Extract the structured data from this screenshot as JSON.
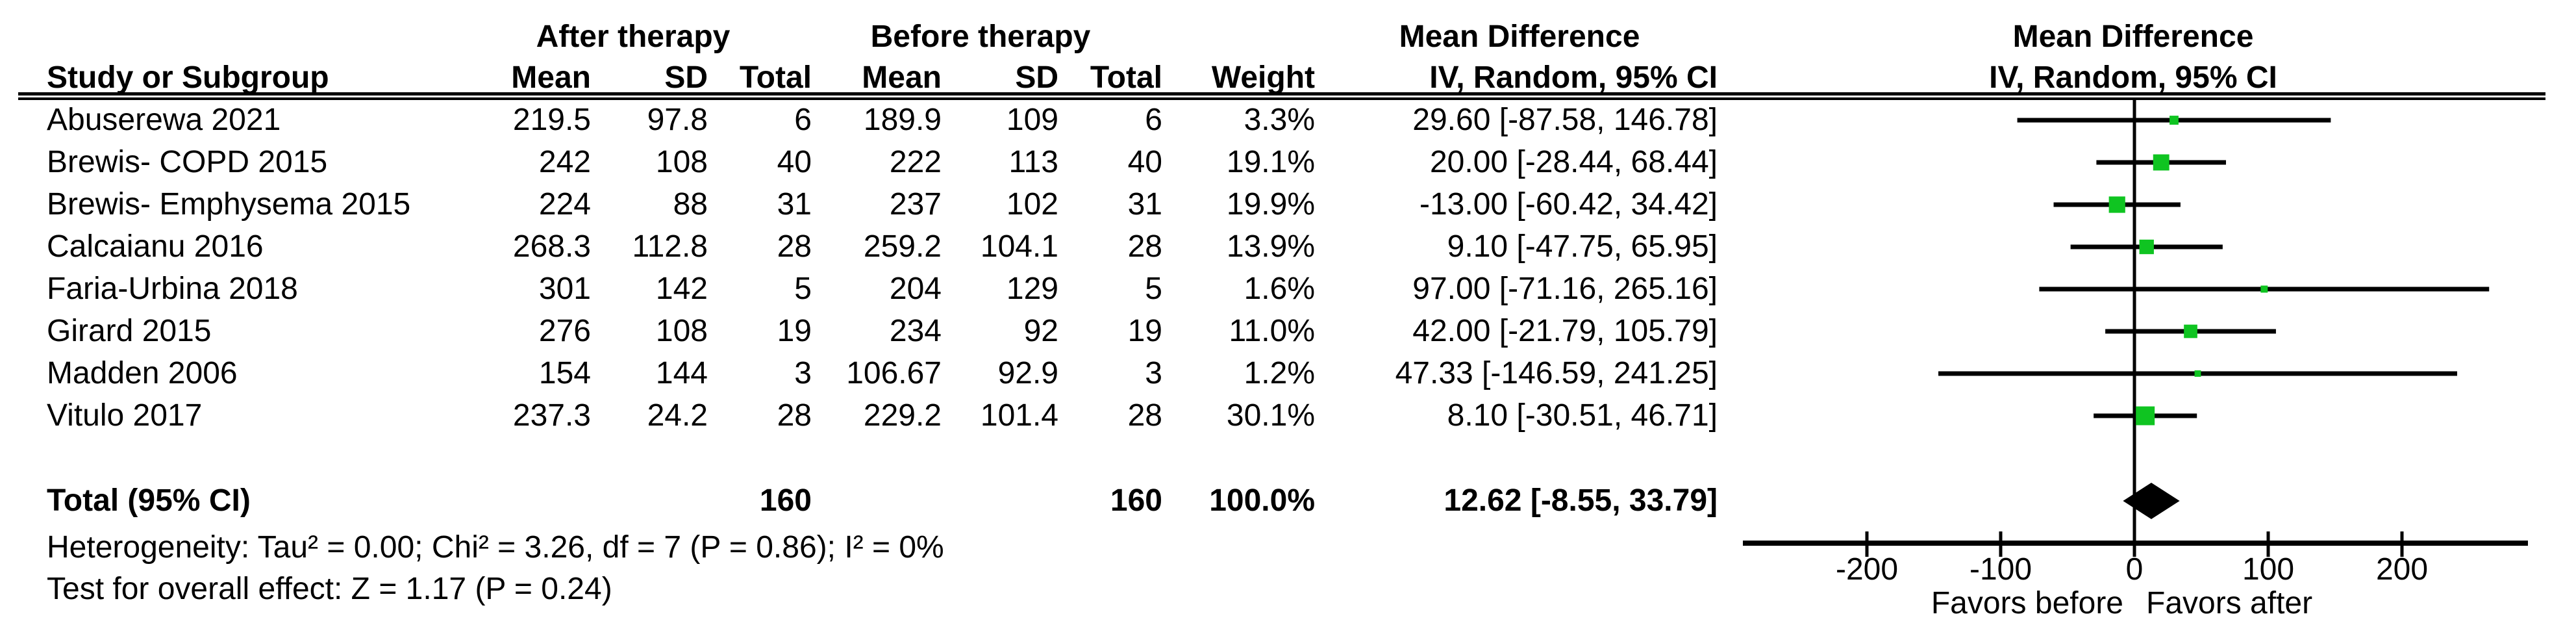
{
  "columns": {
    "study": "Study or Subgroup",
    "group_after": "After therapy",
    "group_before": "Before therapy",
    "mean": "Mean",
    "sd": "SD",
    "total": "Total",
    "weight": "Weight",
    "effect_title": "Mean Difference",
    "effect_method": "IV, Random, 95% CI"
  },
  "plot_header": {
    "title": "Mean Difference",
    "method": "IV, Random, 95% CI"
  },
  "chart_data": {
    "type": "scatter",
    "variant": "forest-plot-mean-difference",
    "title": "Mean Difference IV, Random, 95% CI",
    "x_axis": {
      "ticks": [
        -200,
        -100,
        0,
        100,
        200
      ],
      "tick_labels": [
        "-200",
        "-100",
        "0",
        "100",
        "200"
      ],
      "range": [
        -293,
        294
      ],
      "label_left": "Favors before",
      "label_right": "Favors after"
    },
    "style": {
      "marker_color": "#0fc421",
      "line_color": "#000000"
    },
    "studies": [
      {
        "name": "Abuserewa 2021",
        "after_mean": "219.5",
        "after_sd": "97.8",
        "after_total": "6",
        "before_mean": "189.9",
        "before_sd": "109",
        "before_total": "6",
        "weight": "3.3%",
        "weight_pct": 3.3,
        "md": 29.6,
        "ci_low": -87.58,
        "ci_high": 146.78,
        "ci_text": "29.60 [-87.58, 146.78]"
      },
      {
        "name": "Brewis- COPD 2015",
        "after_mean": "242",
        "after_sd": "108",
        "after_total": "40",
        "before_mean": "222",
        "before_sd": "113",
        "before_total": "40",
        "weight": "19.1%",
        "weight_pct": 19.1,
        "md": 20.0,
        "ci_low": -28.44,
        "ci_high": 68.44,
        "ci_text": "20.00 [-28.44, 68.44]"
      },
      {
        "name": "Brewis- Emphysema 2015",
        "after_mean": "224",
        "after_sd": "88",
        "after_total": "31",
        "before_mean": "237",
        "before_sd": "102",
        "before_total": "31",
        "weight": "19.9%",
        "weight_pct": 19.9,
        "md": -13.0,
        "ci_low": -60.42,
        "ci_high": 34.42,
        "ci_text": "-13.00 [-60.42, 34.42]"
      },
      {
        "name": "Calcaianu 2016",
        "after_mean": "268.3",
        "after_sd": "112.8",
        "after_total": "28",
        "before_mean": "259.2",
        "before_sd": "104.1",
        "before_total": "28",
        "weight": "13.9%",
        "weight_pct": 13.9,
        "md": 9.1,
        "ci_low": -47.75,
        "ci_high": 65.95,
        "ci_text": "9.10 [-47.75, 65.95]"
      },
      {
        "name": "Faria-Urbina 2018",
        "after_mean": "301",
        "after_sd": "142",
        "after_total": "5",
        "before_mean": "204",
        "before_sd": "129",
        "before_total": "5",
        "weight": "1.6%",
        "weight_pct": 1.6,
        "md": 97.0,
        "ci_low": -71.16,
        "ci_high": 265.16,
        "ci_text": "97.00 [-71.16, 265.16]"
      },
      {
        "name": "Girard 2015",
        "after_mean": "276",
        "after_sd": "108",
        "after_total": "19",
        "before_mean": "234",
        "before_sd": "92",
        "before_total": "19",
        "weight": "11.0%",
        "weight_pct": 11.0,
        "md": 42.0,
        "ci_low": -21.79,
        "ci_high": 105.79,
        "ci_text": "42.00 [-21.79, 105.79]"
      },
      {
        "name": "Madden 2006",
        "after_mean": "154",
        "after_sd": "144",
        "after_total": "3",
        "before_mean": "106.67",
        "before_sd": "92.9",
        "before_total": "3",
        "weight": "1.2%",
        "weight_pct": 1.2,
        "md": 47.33,
        "ci_low": -146.59,
        "ci_high": 241.25,
        "ci_text": "47.33 [-146.59, 241.25]"
      },
      {
        "name": "Vitulo 2017",
        "after_mean": "237.3",
        "after_sd": "24.2",
        "after_total": "28",
        "before_mean": "229.2",
        "before_sd": "101.4",
        "before_total": "28",
        "weight": "30.1%",
        "weight_pct": 30.1,
        "md": 8.1,
        "ci_low": -30.51,
        "ci_high": 46.71,
        "ci_text": "8.10 [-30.51, 46.71]"
      }
    ],
    "total": {
      "label": "Total (95% CI)",
      "after_total": "160",
      "before_total": "160",
      "weight": "100.0%",
      "weight_pct": 100.0,
      "md": 12.62,
      "ci_low": -8.55,
      "ci_high": 33.79,
      "ci_text": "12.62 [-8.55, 33.79]"
    },
    "heterogeneity": "Heterogeneity: Tau² = 0.00; Chi² = 3.26, df = 7 (P = 0.86); I² = 0%",
    "overall_effect": "Test for overall effect: Z = 1.17 (P = 0.24)"
  }
}
